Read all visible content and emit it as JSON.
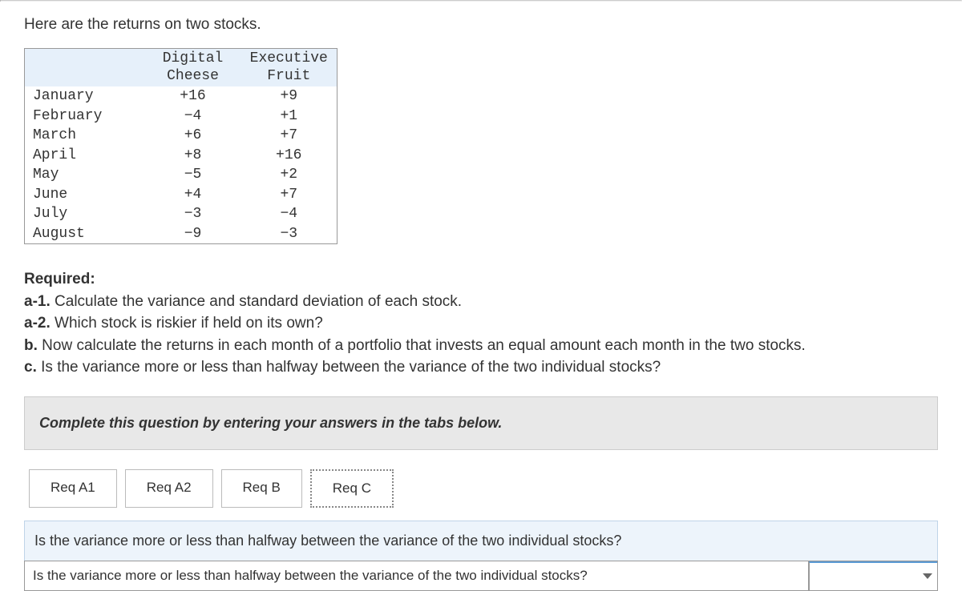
{
  "intro": "Here are the returns on two stocks.",
  "table": {
    "headers": [
      "Digital\nCheese",
      "Executive\nFruit"
    ],
    "rows": [
      {
        "month": "January",
        "dc": "+16",
        "ef": "+9"
      },
      {
        "month": "February",
        "dc": "−4",
        "ef": "+1"
      },
      {
        "month": "March",
        "dc": "+6",
        "ef": "+7"
      },
      {
        "month": "April",
        "dc": "+8",
        "ef": "+16"
      },
      {
        "month": "May",
        "dc": "−5",
        "ef": "+2"
      },
      {
        "month": "June",
        "dc": "+4",
        "ef": "+7"
      },
      {
        "month": "July",
        "dc": "−3",
        "ef": "−4"
      },
      {
        "month": "August",
        "dc": "−9",
        "ef": "−3"
      }
    ]
  },
  "required": {
    "heading": "Required:",
    "items": [
      {
        "label": "a-1.",
        "text": " Calculate the variance and standard deviation of each stock."
      },
      {
        "label": "a-2.",
        "text": " Which stock is riskier if held on its own?"
      },
      {
        "label": "b.",
        "text": " Now calculate the returns in each month of a portfolio that invests an equal amount each month in the two stocks."
      },
      {
        "label": "c.",
        "text": " Is the variance more or less than halfway between the variance of the two individual stocks?"
      }
    ]
  },
  "instruction": "Complete this question by entering your answers in the tabs below.",
  "tabs": {
    "items": [
      "Req A1",
      "Req A2",
      "Req B",
      "Req C"
    ],
    "active_index": 3
  },
  "question_bar": "Is the variance more or less than halfway between the variance of the two individual stocks?",
  "answer_label": "Is the variance more or less than halfway between the variance of the two individual stocks?",
  "colors": {
    "header_bg": "#e6f0fa",
    "instruction_bg": "#e8e8e8",
    "question_bg": "#edf4fb",
    "dropdown_accent": "#5b9bd5"
  }
}
